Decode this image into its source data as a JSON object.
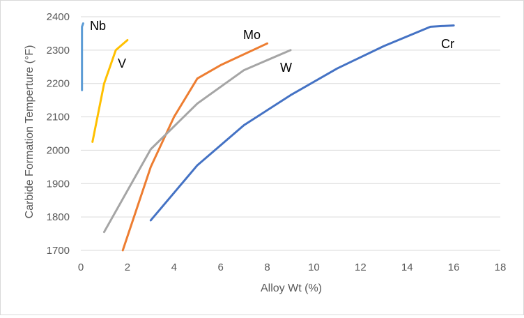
{
  "chart_data": {
    "type": "line",
    "xlabel": "Alloy Wt (%)",
    "ylabel": "Carbide Formation Temperture (°F)",
    "xlim": [
      0,
      18
    ],
    "ylim": [
      1700,
      2400
    ],
    "x_ticks": [
      "0",
      "2",
      "4",
      "6",
      "8",
      "10",
      "12",
      "14",
      "16",
      "18"
    ],
    "y_ticks": [
      "1700",
      "1800",
      "1900",
      "2000",
      "2100",
      "2200",
      "2300",
      "2400"
    ],
    "grid": true,
    "legend": "none",
    "series": [
      {
        "name": "Nb",
        "color": "#5B9BD5",
        "points": [
          [
            0.05,
            2180
          ],
          [
            0.05,
            2370
          ],
          [
            0.1,
            2380
          ]
        ]
      },
      {
        "name": "V",
        "color": "#FFC000",
        "points": [
          [
            0.5,
            2025
          ],
          [
            1.0,
            2200
          ],
          [
            1.5,
            2300
          ],
          [
            2.0,
            2330
          ]
        ]
      },
      {
        "name": "Mo",
        "color": "#ED7D31",
        "points": [
          [
            1.8,
            1700
          ],
          [
            3.0,
            1950
          ],
          [
            4.0,
            2100
          ],
          [
            5.0,
            2215
          ],
          [
            6.0,
            2255
          ],
          [
            8.0,
            2320
          ]
        ]
      },
      {
        "name": "W",
        "color": "#A5A5A5",
        "points": [
          [
            1.0,
            1755
          ],
          [
            3.0,
            2003
          ],
          [
            5.0,
            2140
          ],
          [
            7.0,
            2240
          ],
          [
            9.0,
            2300
          ]
        ]
      },
      {
        "name": "Cr",
        "color": "#4472C4",
        "points": [
          [
            3.0,
            1790
          ],
          [
            5.0,
            1955
          ],
          [
            7.0,
            2075
          ],
          [
            9.0,
            2165
          ],
          [
            11.0,
            2245
          ],
          [
            13.0,
            2312
          ],
          [
            15.0,
            2370
          ],
          [
            16.0,
            2374
          ]
        ]
      }
    ]
  }
}
